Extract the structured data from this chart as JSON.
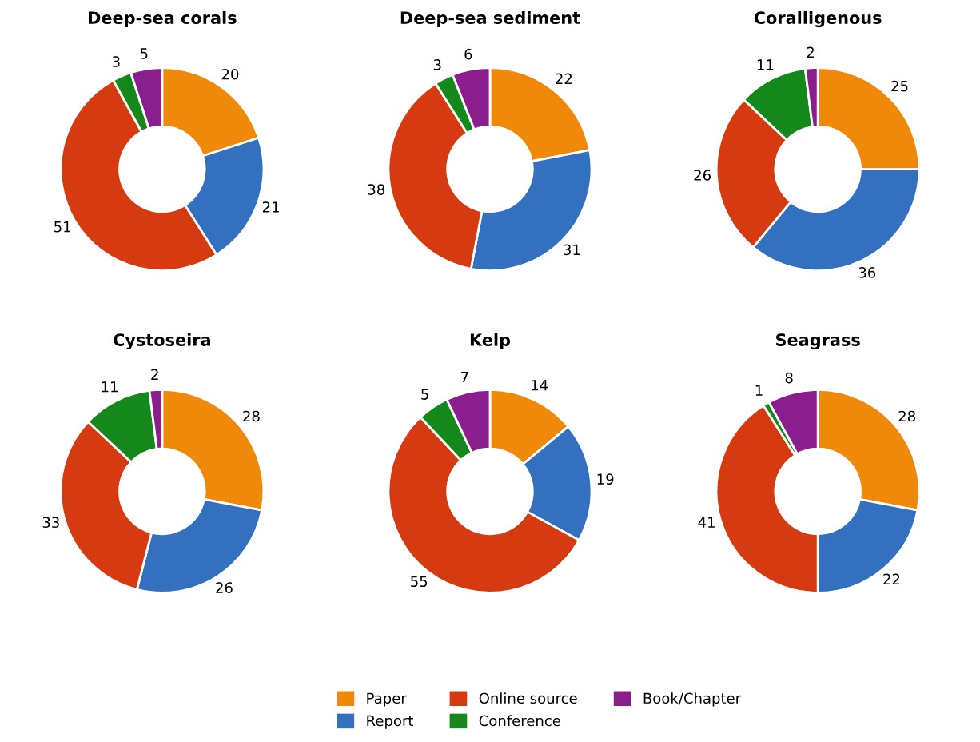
{
  "chart_data": [
    {
      "type": "donut",
      "title": "Deep-sea corals",
      "categories": [
        "Paper",
        "Report",
        "Online source",
        "Conference",
        "Book/Chapter"
      ],
      "values": [
        20,
        21,
        51,
        3,
        5
      ],
      "colors": [
        "#f0880a",
        "#3370c0",
        "#d63a10",
        "#14881a",
        "#8a1e8c"
      ],
      "data_labels": true,
      "legend": "bottom"
    },
    {
      "type": "donut",
      "title": "Deep-sea sediment",
      "categories": [
        null,
        null,
        null,
        null,
        null
      ],
      "values": [
        22,
        31,
        38,
        3,
        6
      ],
      "colors": [
        "#f0880a",
        "#3370c0",
        "#d63a10",
        "#14881a",
        "#8a1e8c"
      ],
      "data_labels": true
    },
    {
      "type": "donut",
      "title": "Coralligenous",
      "categories": [
        null,
        null,
        null,
        null,
        null
      ],
      "values": [
        25,
        36,
        26,
        11,
        2
      ],
      "colors": [
        "#f0880a",
        "#3370c0",
        "#d63a10",
        "#14881a",
        "#8a1e8c"
      ],
      "data_labels": true
    },
    {
      "type": "donut",
      "title": "Cystoseira",
      "categories": [
        null,
        null,
        null,
        null,
        null
      ],
      "values": [
        28,
        26,
        33,
        11,
        2
      ],
      "colors": [
        "#f0880a",
        "#3370c0",
        "#d63a10",
        "#14881a",
        "#8a1e8c"
      ],
      "data_labels": true
    },
    {
      "type": "donut",
      "title": "Kelp",
      "categories": [
        null,
        null,
        null,
        null,
        null
      ],
      "values": [
        14,
        19,
        55,
        5,
        7
      ],
      "colors": [
        "#f0880a",
        "#3370c0",
        "#d63a10",
        "#14881a",
        "#8a1e8c"
      ],
      "data_labels": true
    },
    {
      "type": "donut",
      "title": "Seagrass",
      "categories": [
        null,
        null,
        null,
        null,
        null
      ],
      "values": [
        28,
        22,
        41,
        1,
        8
      ],
      "colors": [
        "#f0880a",
        "#3370c0",
        "#d63a10",
        "#14881a",
        "#8a1e8c"
      ],
      "data_labels": true
    }
  ]
}
